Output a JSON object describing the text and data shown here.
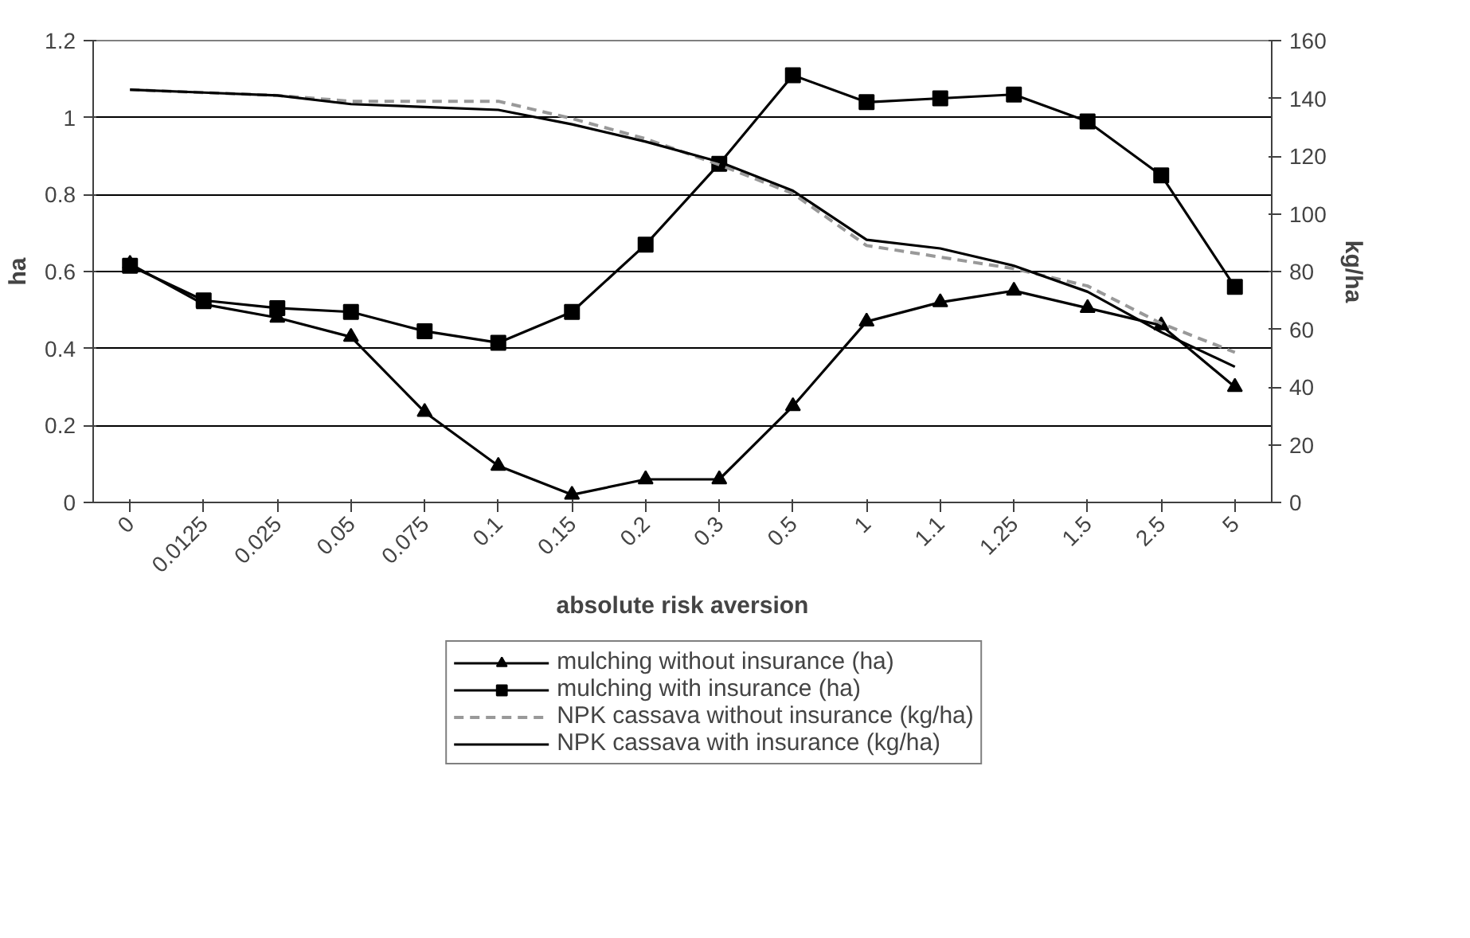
{
  "chart_data": {
    "type": "line",
    "xlabel": "absolute risk aversion",
    "ylabel": "ha",
    "y2label": "kg/ha",
    "categories": [
      "0",
      "0.0125",
      "0.025",
      "0.05",
      "0.075",
      "0.1",
      "0.15",
      "0.2",
      "0.3",
      "0.5",
      "1",
      "1.1",
      "1.25",
      "1.5",
      "2.5",
      "5"
    ],
    "ylim": [
      0,
      1.2
    ],
    "yticks": [
      0,
      0.2,
      0.4,
      0.6,
      0.8,
      {
        "value": 1,
        "label": "1"
      },
      1.2
    ],
    "y2lim": [
      0,
      160
    ],
    "y2ticks": [
      0,
      20,
      40,
      60,
      80,
      100,
      120,
      140,
      160
    ],
    "grid": "y",
    "legend": "bottom",
    "series": [
      {
        "name": "mulching without insurance (ha)",
        "color": "#000000",
        "marker": "triangle",
        "line_style": "solid",
        "values": [
          0.62,
          0.515,
          0.48,
          0.43,
          0.235,
          0.095,
          0.02,
          0.06,
          0.06,
          0.25,
          0.47,
          0.52,
          0.55,
          0.505,
          0.46,
          0.3
        ]
      },
      {
        "name": "mulching with insurance (ha)",
        "color": "#000000",
        "marker": "square",
        "line_style": "solid",
        "values": [
          0.615,
          0.525,
          0.505,
          0.495,
          0.445,
          0.415,
          0.495,
          0.67,
          0.88,
          1.11,
          1.04,
          1.05,
          1.06,
          0.99,
          0.85,
          0.56
        ]
      },
      {
        "name": "NPK cassava without insurance (kg/ha)",
        "color": "#999999",
        "marker": "none",
        "line_style": "dashed",
        "axis": "y2",
        "values": [
          143,
          142,
          141,
          139,
          139,
          139,
          133,
          126,
          117,
          107,
          89,
          85,
          81,
          75,
          62,
          52
        ]
      },
      {
        "name": "NPK cassava with insurance (kg/ha)",
        "color": "#000000",
        "marker": "none",
        "line_style": "solid",
        "axis": "y2",
        "values": [
          143,
          142,
          141,
          138,
          137,
          136,
          131,
          125,
          118,
          108,
          91,
          88,
          82,
          73,
          59,
          47
        ]
      }
    ]
  }
}
